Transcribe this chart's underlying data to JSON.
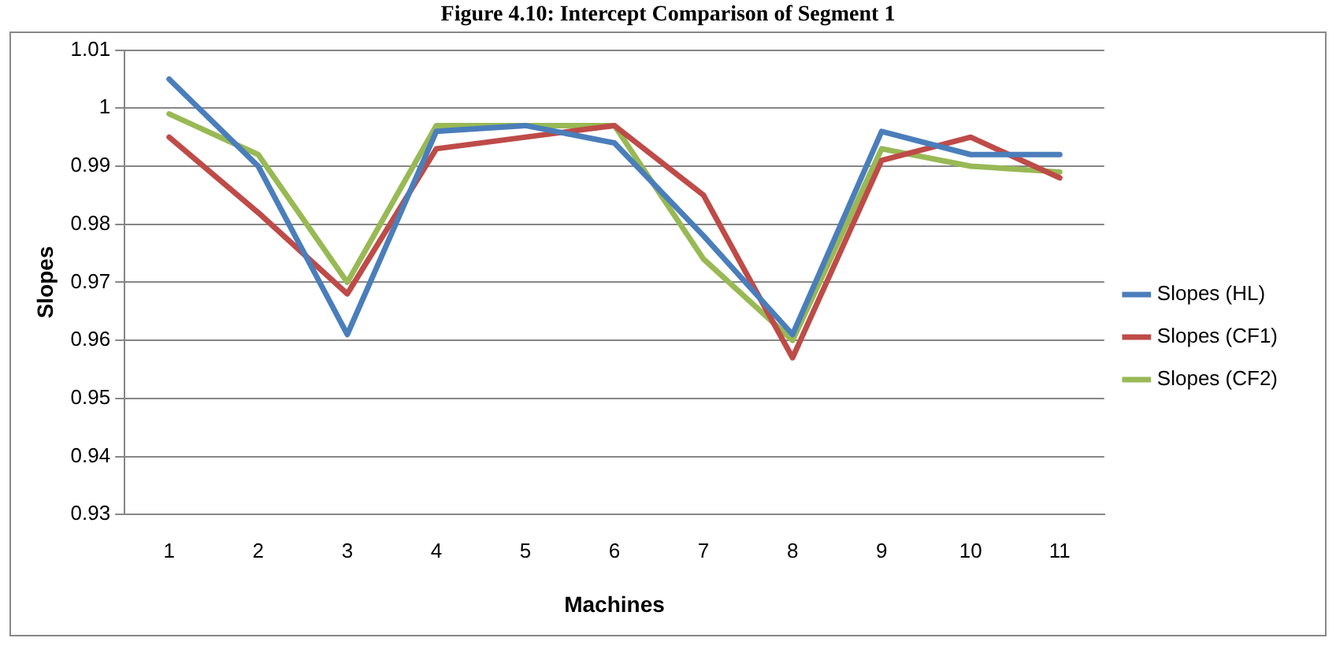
{
  "chart_data": {
    "type": "line",
    "title": "Figure 4.10: Intercept Comparison of Segment 1",
    "xlabel": "Machines",
    "ylabel": "Slopes",
    "categories": [
      "1",
      "2",
      "3",
      "4",
      "5",
      "6",
      "7",
      "8",
      "9",
      "10",
      "11"
    ],
    "series": [
      {
        "name": "Slopes (HL)",
        "color": "#4a7ebb",
        "values": [
          1.005,
          0.99,
          0.961,
          0.996,
          0.997,
          0.994,
          0.978,
          0.961,
          0.996,
          0.992,
          0.992
        ]
      },
      {
        "name": "Slopes (CF1)",
        "color": "#be4b48",
        "values": [
          0.995,
          0.982,
          0.968,
          0.993,
          0.995,
          0.997,
          0.985,
          0.957,
          0.991,
          0.995,
          0.988
        ]
      },
      {
        "name": "Slopes (CF2)",
        "color": "#98b954",
        "values": [
          0.999,
          0.992,
          0.97,
          0.997,
          0.997,
          0.997,
          0.974,
          0.96,
          0.993,
          0.99,
          0.989
        ]
      }
    ],
    "ylim": [
      0.93,
      1.01
    ],
    "yticks": [
      0.93,
      0.94,
      0.95,
      0.96,
      0.97,
      0.98,
      0.99,
      1,
      1.01
    ],
    "grid": "y",
    "legend": "right",
    "marker": "none",
    "line_style": "solid"
  }
}
